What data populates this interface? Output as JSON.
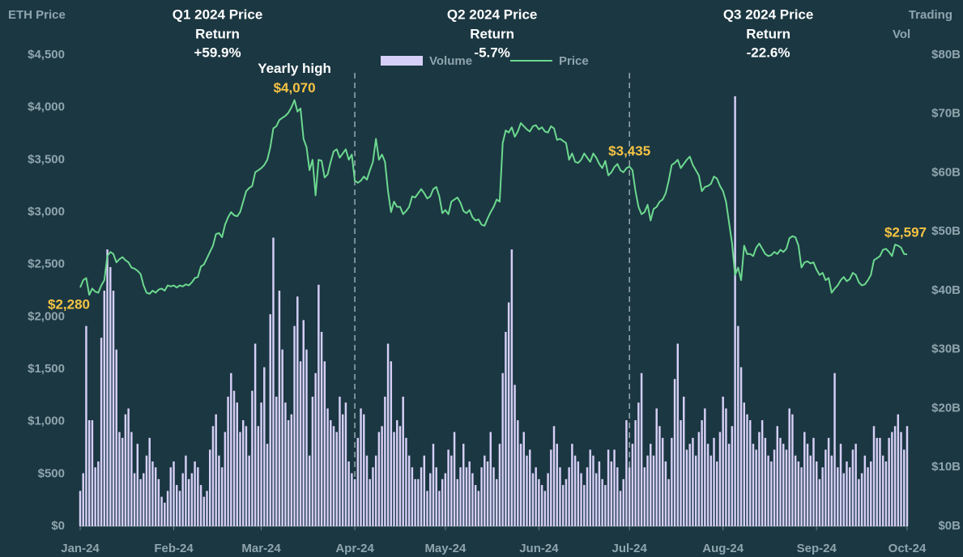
{
  "chart_data": {
    "type": "bar_line",
    "y_label": "ETH Price",
    "y2_label_lines": [
      "Trading",
      "Vol"
    ],
    "legend": "upper center",
    "xlim": [
      0,
      274
    ],
    "xticks": [
      {
        "value": 0,
        "label": "Jan-24"
      },
      {
        "value": 31,
        "label": "Feb-24"
      },
      {
        "value": 60,
        "label": "Mar-24"
      },
      {
        "value": 91,
        "label": "Apr-24"
      },
      {
        "value": 121,
        "label": "May-24"
      },
      {
        "value": 152,
        "label": "Jun-24"
      },
      {
        "value": 182,
        "label": "Jul-24"
      },
      {
        "value": 213,
        "label": "Aug-24"
      },
      {
        "value": 244,
        "label": "Sep-24"
      },
      {
        "value": 274,
        "label": "Oct-24"
      }
    ],
    "ylim": [
      0,
      4500
    ],
    "yticks": [
      {
        "value": 0,
        "label": "$0"
      },
      {
        "value": 500,
        "label": "$500"
      },
      {
        "value": 1000,
        "label": "$1,000"
      },
      {
        "value": 1500,
        "label": "$1,500"
      },
      {
        "value": 2000,
        "label": "$2,000"
      },
      {
        "value": 2500,
        "label": "$2,500"
      },
      {
        "value": 3000,
        "label": "$3,000"
      },
      {
        "value": 3500,
        "label": "$3,500"
      },
      {
        "value": 4000,
        "label": "$4,000"
      },
      {
        "value": 4500,
        "label": "$4,500"
      }
    ],
    "y2lim": [
      0,
      80
    ],
    "y2ticks": [
      {
        "value": 0,
        "label": "$0B"
      },
      {
        "value": 10,
        "label": "$10B"
      },
      {
        "value": 20,
        "label": "$20B"
      },
      {
        "value": 30,
        "label": "$30B"
      },
      {
        "value": 40,
        "label": "$40B"
      },
      {
        "value": 50,
        "label": "$50B"
      },
      {
        "value": 60,
        "label": "$60B"
      },
      {
        "value": 70,
        "label": "$70B"
      },
      {
        "value": 80,
        "label": "$80B"
      }
    ],
    "quarters": [
      {
        "title_lines": [
          "Q1 2024 Price",
          "Return"
        ],
        "return": "+59.9%",
        "color": "#6cd98f"
      },
      {
        "title_lines": [
          "Q2 2024 Price",
          "Return"
        ],
        "return": "-5.7%",
        "color": "#f08a8a"
      },
      {
        "title_lines": [
          "Q3 2024 Price",
          "Return"
        ],
        "return": "-22.6%",
        "color": "#f08a8a"
      }
    ],
    "annotations": [
      {
        "x": 0,
        "label": "$2,280"
      },
      {
        "x": 71,
        "label": "$4,070",
        "note": "Yearly high"
      },
      {
        "x": 182,
        "label": "$3,435"
      },
      {
        "x": 274,
        "label": "$2,597"
      }
    ],
    "series": [
      {
        "name": "Volume",
        "color": "#d6cff7",
        "axis": "y2",
        "values": [
          6,
          9,
          34,
          18,
          18,
          10,
          11,
          32,
          40,
          47,
          44,
          40,
          30,
          16,
          15,
          19,
          20,
          16,
          9,
          14,
          8,
          9,
          12,
          15,
          11,
          10,
          8,
          5,
          4,
          6,
          10,
          11,
          7,
          6,
          9,
          12,
          8,
          9,
          11,
          10,
          7,
          5,
          6,
          13,
          17,
          19,
          12,
          10,
          16,
          22,
          26,
          23,
          21,
          16,
          18,
          17,
          12,
          23,
          31,
          17,
          21,
          27,
          14,
          36,
          49,
          22,
          40,
          30,
          21,
          18,
          19,
          34,
          39,
          28,
          35,
          30,
          12,
          22,
          26,
          41,
          33,
          28,
          20,
          18,
          17,
          16,
          22,
          19,
          21,
          11,
          9,
          8,
          15,
          20,
          19,
          12,
          8,
          10,
          12,
          16,
          17,
          22,
          31,
          28,
          16,
          18,
          17,
          22,
          15,
          12,
          10,
          8,
          8,
          10,
          12,
          6,
          9,
          14,
          10,
          6,
          8,
          9,
          13,
          12,
          16,
          8,
          10,
          14,
          10,
          11,
          9,
          7,
          6,
          10,
          12,
          11,
          16,
          10,
          8,
          14,
          26,
          33,
          38,
          47,
          24,
          18,
          14,
          16,
          12,
          13,
          9,
          10,
          8,
          7,
          6,
          9,
          13,
          17,
          14,
          10,
          7,
          8,
          10,
          14,
          12,
          11,
          9,
          7,
          10,
          13,
          12,
          9,
          11,
          8,
          7,
          13,
          11,
          13,
          10,
          6,
          8,
          18,
          10,
          14,
          18,
          21,
          26,
          10,
          12,
          14,
          12,
          20,
          17,
          15,
          11,
          8,
          15,
          25,
          31,
          18,
          22,
          13,
          14,
          15,
          12,
          16,
          18,
          20,
          14,
          12,
          15,
          11,
          16,
          22,
          20,
          14,
          17,
          73,
          34,
          27,
          21,
          19,
          18,
          14,
          13,
          16,
          18,
          15,
          12,
          11,
          13,
          17,
          15,
          14,
          13,
          20,
          19,
          12,
          11,
          10,
          16,
          14,
          12,
          15,
          11,
          8,
          10,
          13,
          15,
          12,
          26,
          10,
          14,
          9,
          11,
          10,
          13,
          14,
          8,
          9,
          12,
          10,
          11,
          17,
          15,
          15,
          12,
          11,
          15,
          16,
          17,
          19,
          16,
          13,
          17
        ]
      },
      {
        "name": "Price",
        "color": "#6cd98f",
        "values": [
          2280,
          2350,
          2370,
          2210,
          2270,
          2240,
          2230,
          2300,
          2350,
          2580,
          2620,
          2600,
          2520,
          2550,
          2570,
          2540,
          2520,
          2470,
          2460,
          2440,
          2410,
          2300,
          2230,
          2220,
          2250,
          2230,
          2260,
          2270,
          2250,
          2300,
          2290,
          2300,
          2280,
          2300,
          2290,
          2310,
          2300,
          2330,
          2370,
          2380,
          2480,
          2500,
          2560,
          2620,
          2680,
          2790,
          2800,
          2760,
          2880,
          2950,
          3000,
          2970,
          2960,
          3000,
          3100,
          3200,
          3230,
          3250,
          3380,
          3400,
          3420,
          3450,
          3500,
          3620,
          3800,
          3820,
          3880,
          3900,
          3920,
          3950,
          4000,
          4070,
          3960,
          3990,
          3700,
          3620,
          3400,
          3500,
          3160,
          3500,
          3490,
          3330,
          3360,
          3480,
          3580,
          3600,
          3520,
          3560,
          3600,
          3500,
          3550,
          3300,
          3280,
          3300,
          3340,
          3310,
          3400,
          3480,
          3700,
          3500,
          3550,
          3480,
          3200,
          3000,
          3100,
          3050,
          3050,
          2980,
          3010,
          3050,
          3150,
          3140,
          3180,
          3220,
          3180,
          3130,
          3150,
          3220,
          3240,
          3150,
          2990,
          3020,
          2980,
          3100,
          3120,
          3140,
          3090,
          3010,
          2990,
          3020,
          2950,
          2920,
          2930,
          2880,
          2870,
          2940,
          3000,
          3050,
          3120,
          3100,
          3660,
          3780,
          3760,
          3810,
          3720,
          3770,
          3850,
          3820,
          3790,
          3770,
          3820,
          3830,
          3790,
          3810,
          3770,
          3760,
          3820,
          3800,
          3690,
          3700,
          3680,
          3660,
          3500,
          3560,
          3480,
          3470,
          3500,
          3560,
          3520,
          3480,
          3560,
          3520,
          3460,
          3420,
          3490,
          3350,
          3380,
          3430,
          3460,
          3400,
          3380,
          3420,
          3435,
          3400,
          3200,
          3050,
          2980,
          3000,
          3070,
          2920,
          3030,
          3050,
          3100,
          3120,
          3180,
          3300,
          3450,
          3470,
          3500,
          3420,
          3460,
          3500,
          3530,
          3450,
          3400,
          3350,
          3200,
          3240,
          3250,
          3270,
          3340,
          3320,
          3250,
          3200,
          3100,
          2900,
          2700,
          2400,
          2470,
          2350,
          2680,
          2600,
          2600,
          2580,
          2660,
          2700,
          2650,
          2600,
          2580,
          2590,
          2620,
          2600,
          2640,
          2620,
          2650,
          2750,
          2770,
          2760,
          2680,
          2470,
          2520,
          2530,
          2510,
          2520,
          2450,
          2400,
          2420,
          2350,
          2370,
          2230,
          2270,
          2300,
          2350,
          2380,
          2340,
          2360,
          2420,
          2400,
          2330,
          2300,
          2310,
          2350,
          2400,
          2540,
          2560,
          2580,
          2640,
          2650,
          2620,
          2580,
          2690,
          2680,
          2660,
          2600,
          2597
        ]
      }
    ]
  }
}
